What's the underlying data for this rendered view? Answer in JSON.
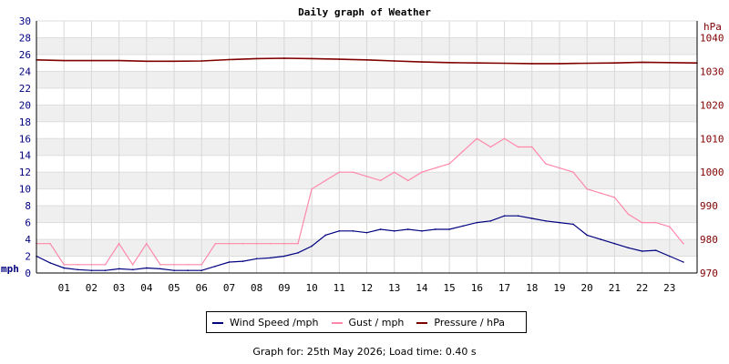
{
  "chart_data": {
    "type": "line",
    "title": "Daily graph of Weather",
    "left_axis": {
      "label": "mph",
      "ylim": [
        0,
        30
      ],
      "ticks": [
        0,
        2,
        4,
        6,
        8,
        10,
        12,
        14,
        16,
        18,
        20,
        22,
        24,
        26,
        28,
        30
      ]
    },
    "right_axis": {
      "label": "hPa",
      "ylim": [
        970,
        1045
      ],
      "ticks": [
        970,
        980,
        990,
        1000,
        1010,
        1020,
        1030,
        1040
      ]
    },
    "x_axis": {
      "xlim": [
        0,
        24
      ],
      "tick_labels": [
        "01",
        "02",
        "03",
        "04",
        "05",
        "06",
        "07",
        "08",
        "09",
        "10",
        "11",
        "12",
        "13",
        "14",
        "15",
        "16",
        "17",
        "18",
        "19",
        "20",
        "21",
        "22",
        "23"
      ]
    },
    "grid": true,
    "legend_placement": "bottom",
    "series": [
      {
        "name": "Wind Speed /mph",
        "color": "#000080",
        "axis": "left",
        "x": [
          0,
          0.5,
          1,
          1.5,
          2,
          2.5,
          3,
          3.5,
          4,
          4.5,
          5,
          5.5,
          6,
          6.5,
          7,
          7.5,
          8,
          8.5,
          9,
          9.5,
          10,
          10.5,
          11,
          11.5,
          12,
          12.5,
          13,
          13.5,
          14,
          14.5,
          15,
          15.5,
          16,
          16.5,
          17,
          17.5,
          18,
          18.5,
          19,
          19.5,
          20,
          20.5,
          21,
          21.5,
          22,
          22.5,
          23,
          23.5
        ],
        "values": [
          2,
          1.2,
          0.6,
          0.4,
          0.3,
          0.3,
          0.5,
          0.4,
          0.6,
          0.5,
          0.3,
          0.3,
          0.3,
          0.8,
          1.3,
          1.4,
          1.7,
          1.8,
          2,
          2.4,
          3.2,
          4.5,
          5,
          5,
          4.8,
          5.2,
          5,
          5.2,
          5,
          5.2,
          5.2,
          5.6,
          6,
          6.2,
          6.8,
          6.8,
          6.5,
          6.2,
          6,
          5.8,
          4.5,
          4,
          3.5,
          3,
          2.6,
          2.7,
          2,
          1.3
        ]
      },
      {
        "name": "Gust / mph",
        "color": "#ff88aa",
        "axis": "left",
        "x": [
          0,
          0.5,
          1,
          1.5,
          2,
          2.5,
          3,
          3.5,
          4,
          4.5,
          5,
          5.5,
          6,
          6.5,
          7,
          7.5,
          8,
          8.5,
          9,
          9.5,
          10,
          10.5,
          11,
          11.5,
          12,
          12.5,
          13,
          13.5,
          14,
          14.5,
          15,
          15.5,
          16,
          16.5,
          17,
          17.5,
          18,
          18.5,
          19,
          19.5,
          20,
          20.5,
          21,
          21.5,
          22,
          22.5,
          23,
          23.5
        ],
        "values": [
          3.5,
          3.5,
          1,
          1,
          1,
          1,
          3.5,
          1,
          3.5,
          1,
          1,
          1,
          1,
          3.5,
          3.5,
          3.5,
          3.5,
          3.5,
          3.5,
          3.5,
          10,
          11,
          12,
          12,
          11.5,
          11,
          12,
          11,
          12,
          12.5,
          13,
          14.5,
          16,
          15,
          16,
          15,
          15,
          13,
          12.5,
          12,
          10,
          9.5,
          9,
          7,
          6,
          6,
          5.5,
          3.5
        ]
      },
      {
        "name": "Pressure / hPa",
        "color": "#800000",
        "axis": "right",
        "x": [
          0,
          1,
          2,
          3,
          4,
          5,
          6,
          7,
          8,
          9,
          10,
          11,
          12,
          13,
          14,
          15,
          16,
          17,
          18,
          19,
          20,
          21,
          22,
          23,
          24
        ],
        "values": [
          1033.4,
          1033.2,
          1033.2,
          1033.2,
          1033.0,
          1033.0,
          1033.1,
          1033.5,
          1033.8,
          1033.9,
          1033.8,
          1033.6,
          1033.4,
          1033.1,
          1032.8,
          1032.6,
          1032.5,
          1032.4,
          1032.3,
          1032.3,
          1032.4,
          1032.5,
          1032.7,
          1032.6,
          1032.5
        ]
      }
    ]
  },
  "footer": {
    "text": "Graph for: 25th May 2026; Load time: 0.40 s"
  }
}
